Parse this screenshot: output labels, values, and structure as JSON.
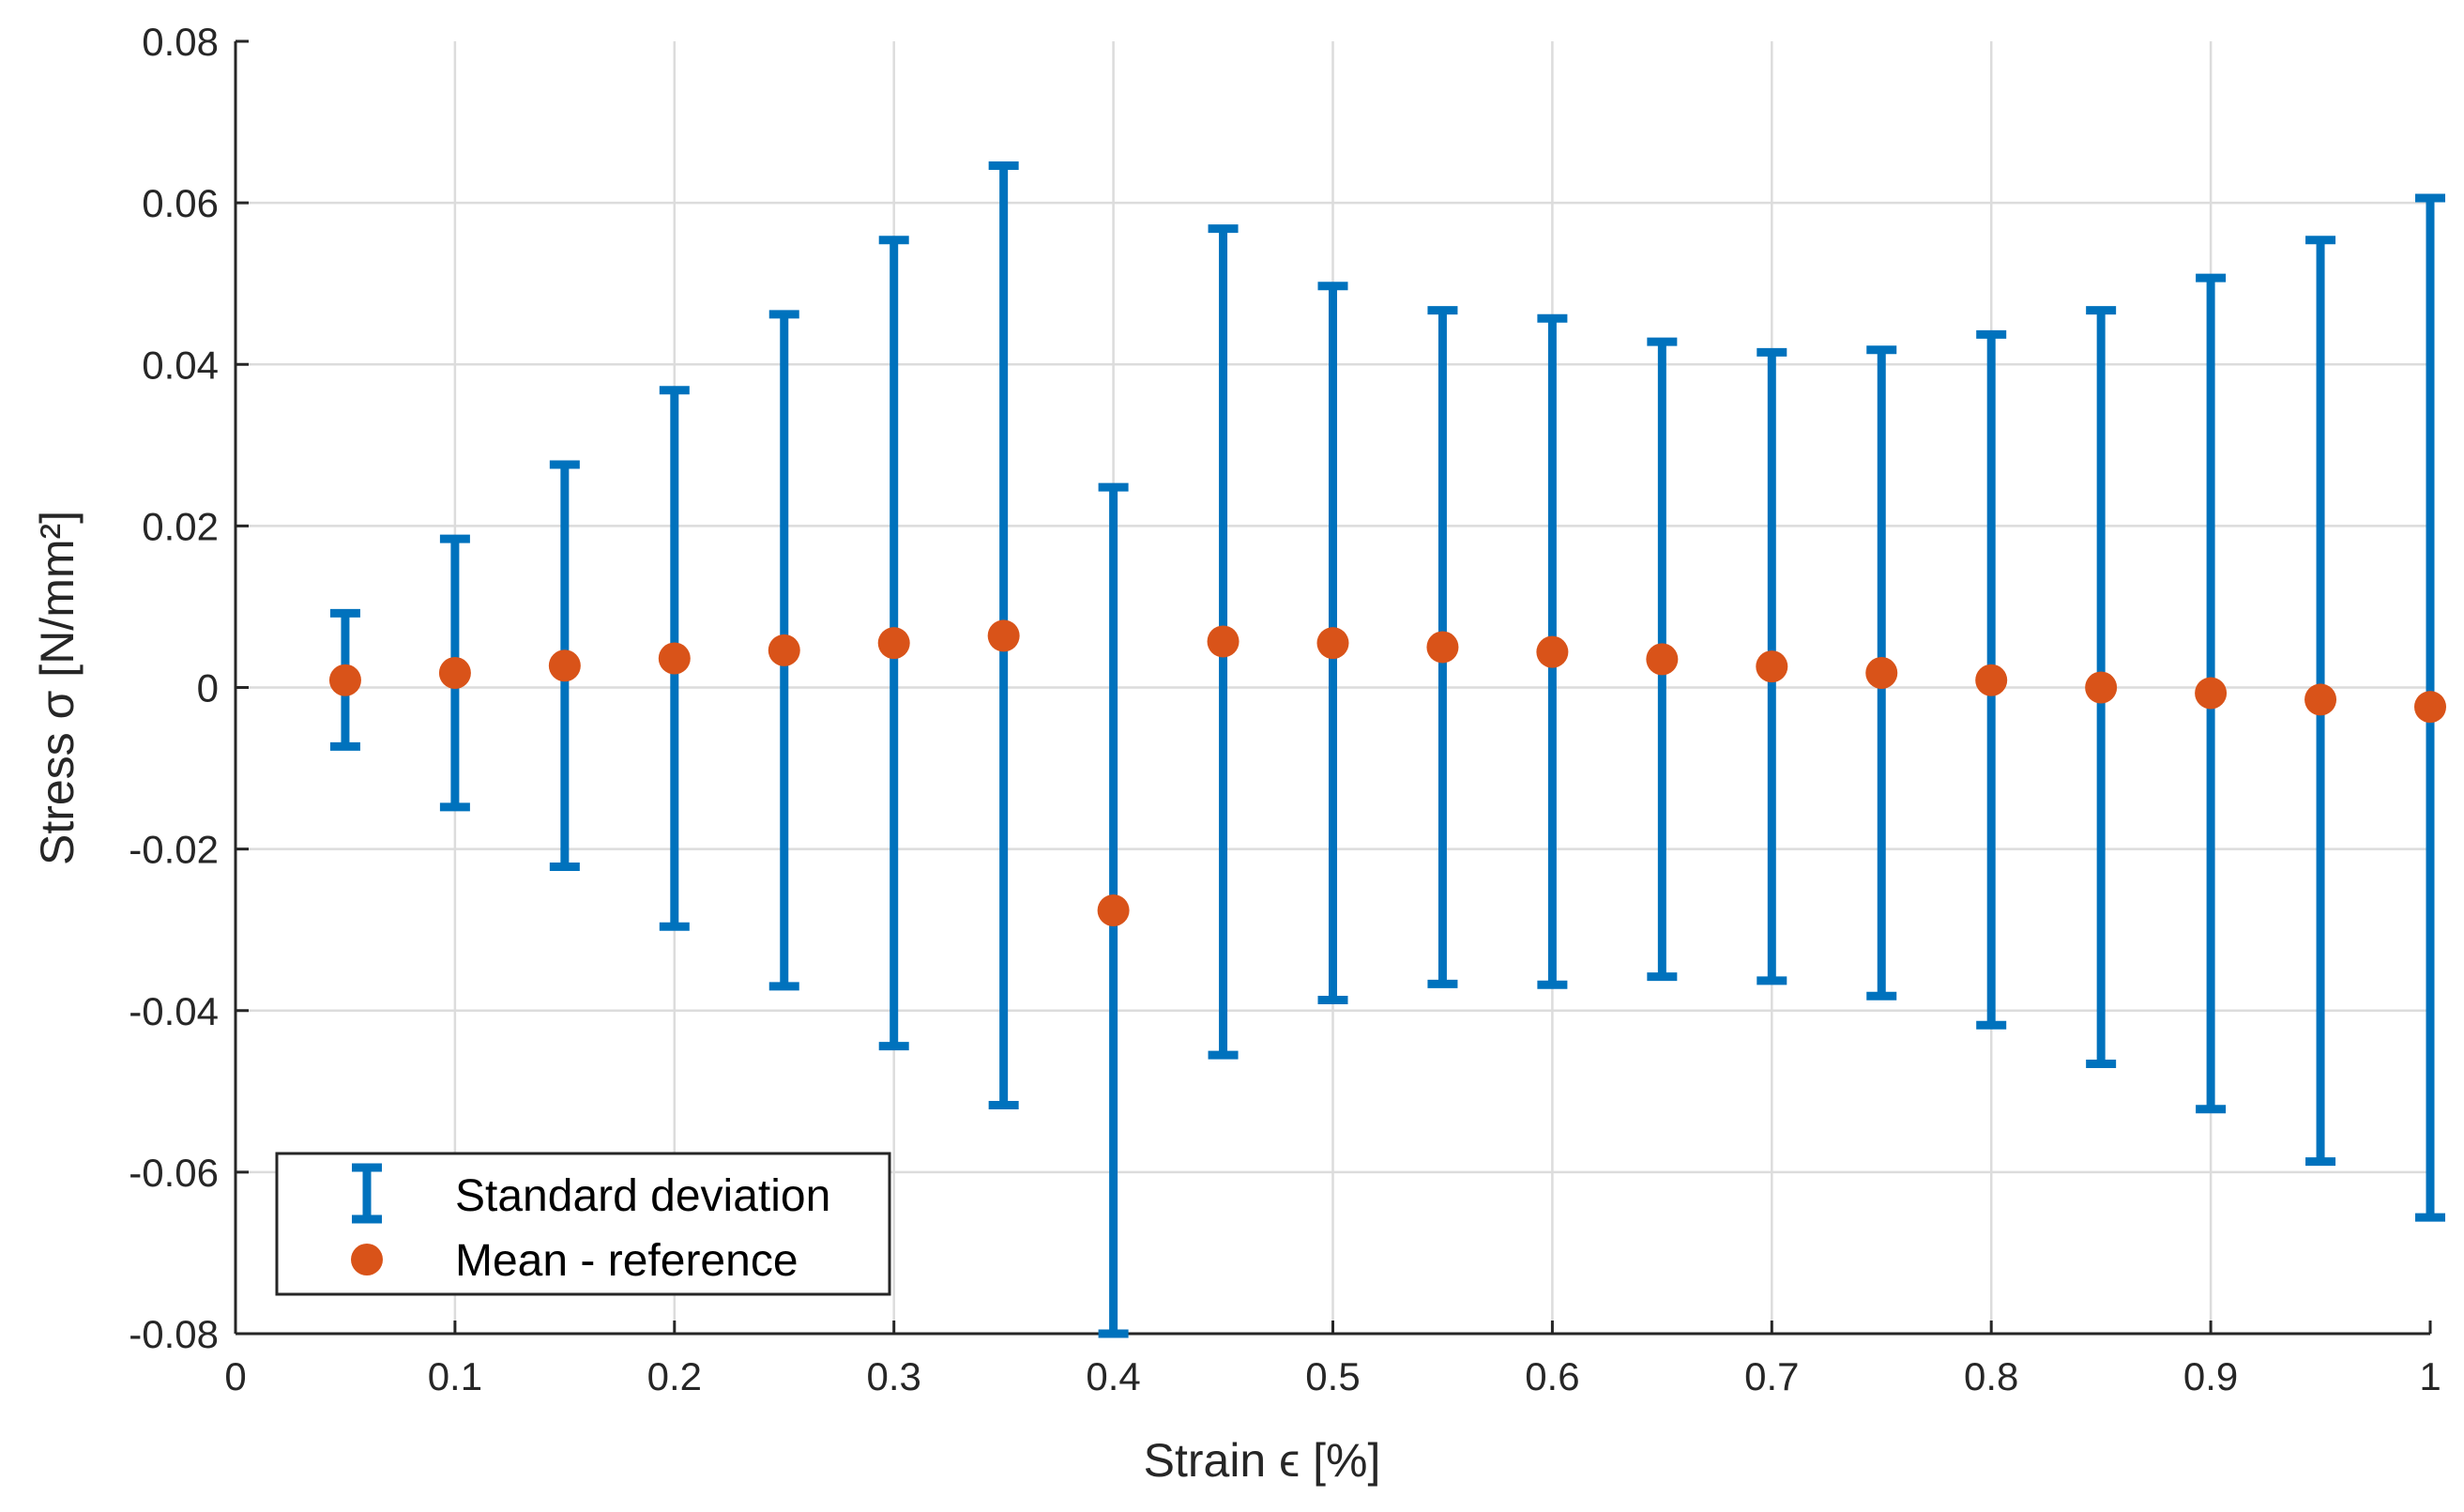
{
  "chart_data": {
    "type": "scatter",
    "xlabel": "Strain ϵ [%]",
    "ylabel": "Stress σ [N/mm²]",
    "xlim": [
      0,
      1
    ],
    "ylim": [
      -0.08,
      0.08
    ],
    "x_ticks": [
      0,
      0.1,
      0.2,
      0.3,
      0.4,
      0.5,
      0.6,
      0.7,
      0.8,
      0.9,
      1
    ],
    "x_tick_labels": [
      "0",
      "0.1",
      "0.2",
      "0.3",
      "0.4",
      "0.5",
      "0.6",
      "0.7",
      "0.8",
      "0.9",
      "1"
    ],
    "y_ticks": [
      -0.08,
      -0.06,
      -0.04,
      -0.02,
      0,
      0.02,
      0.04,
      0.06,
      0.08
    ],
    "y_tick_labels": [
      "-0.08",
      "-0.06",
      "-0.04",
      "-0.02",
      "0",
      "0.02",
      "0.04",
      "0.06",
      "0.08"
    ],
    "grid": true,
    "legend_position": "bottom-left",
    "x": [
      0.05,
      0.1,
      0.15,
      0.2,
      0.25,
      0.3,
      0.35,
      0.4,
      0.45,
      0.5,
      0.55,
      0.6,
      0.65,
      0.7,
      0.75,
      0.8,
      0.85,
      0.9,
      0.95,
      1.0
    ],
    "series": [
      {
        "name": "Standard deviation",
        "kind": "errorbar",
        "color": "#0072BD",
        "lower": [
          -0.0073,
          -0.0148,
          -0.0222,
          -0.0296,
          -0.037,
          -0.0444,
          -0.0517,
          -0.08,
          -0.0455,
          -0.0387,
          -0.0367,
          -0.0368,
          -0.0358,
          -0.0363,
          -0.0382,
          -0.0418,
          -0.0466,
          -0.0522,
          -0.0587,
          -0.0656
        ],
        "upper": [
          0.0092,
          0.0184,
          0.0276,
          0.0368,
          0.0462,
          0.0554,
          0.0646,
          0.0248,
          0.0568,
          0.0497,
          0.0467,
          0.0457,
          0.0428,
          0.0415,
          0.0418,
          0.0437,
          0.0467,
          0.0507,
          0.0554,
          0.0606
        ]
      },
      {
        "name": "Mean - reference",
        "kind": "marker",
        "color": "#D95319",
        "values": [
          0.0009,
          0.0018,
          0.0027,
          0.0036,
          0.0046,
          0.0055,
          0.0064,
          -0.0276,
          0.0057,
          0.0055,
          0.005,
          0.0044,
          0.0035,
          0.0026,
          0.0018,
          0.0009,
          0.0,
          -0.0007,
          -0.0015,
          -0.0024
        ]
      }
    ]
  }
}
